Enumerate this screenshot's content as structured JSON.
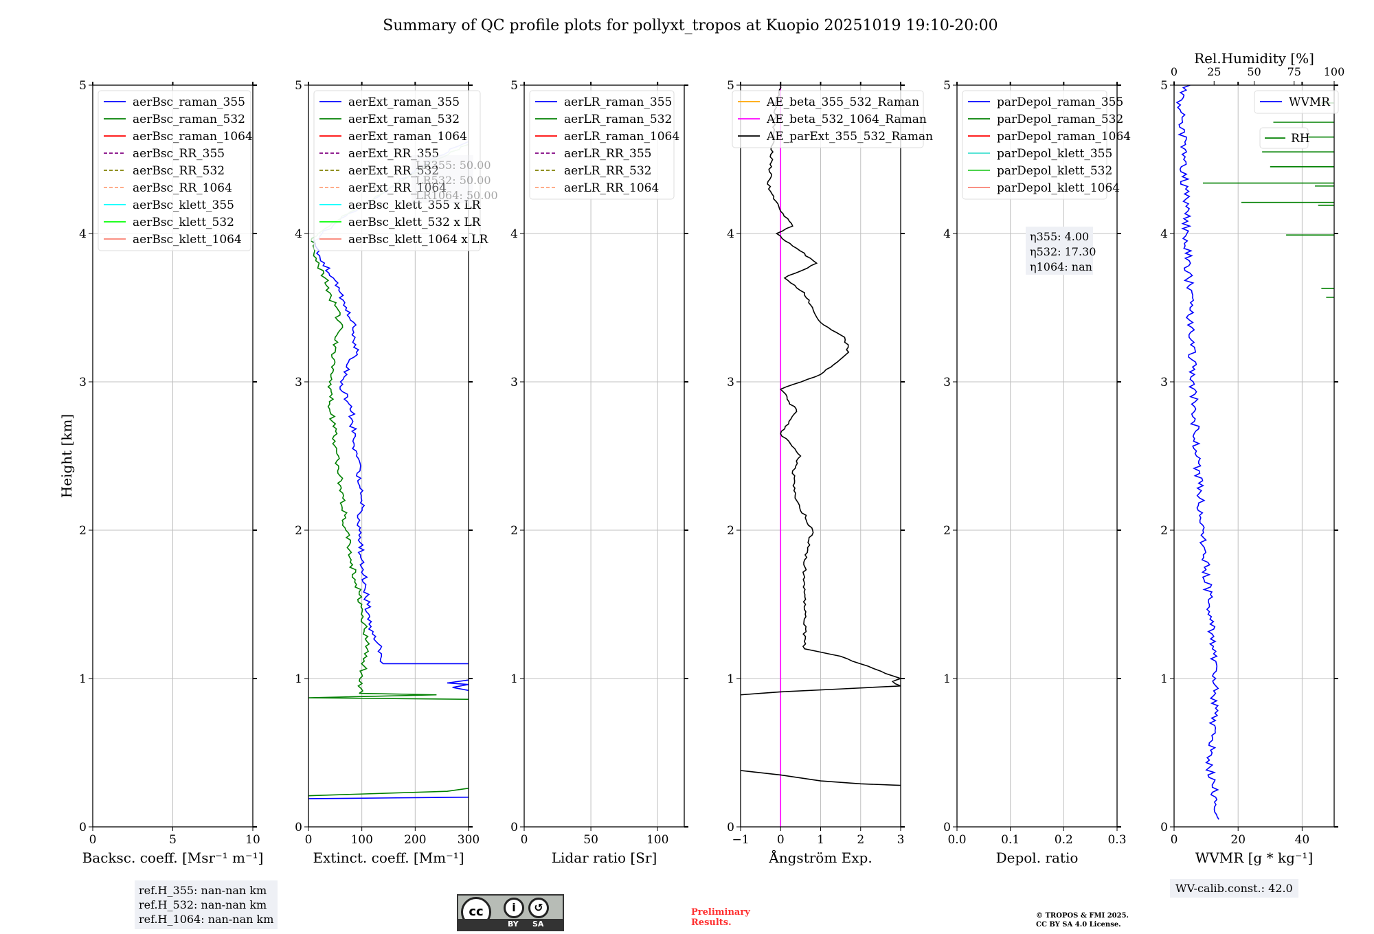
{
  "title": "Summary of QC profile plots for pollyxt_tropos at Kuopio 20251019 19:10-20:00",
  "ylabel": "Height [km]",
  "chart_data": [
    {
      "type": "line",
      "xlabel": "Backsc. coeff. [Msr⁻¹ m⁻¹]",
      "xlim": [
        0,
        10
      ],
      "xticks": [
        "0",
        "5",
        "10"
      ],
      "xtickvals": [
        0,
        5,
        10
      ],
      "ylim": [
        0,
        5
      ],
      "yticks": [
        "0",
        "1",
        "2",
        "3",
        "4",
        "5"
      ],
      "legend": [
        {
          "label": "aerBsc_raman_355",
          "color": "#0000ff",
          "dash": false
        },
        {
          "label": "aerBsc_raman_532",
          "color": "#008000",
          "dash": false
        },
        {
          "label": "aerBsc_raman_1064",
          "color": "#ff0000",
          "dash": false
        },
        {
          "label": "aerBsc_RR_355",
          "color": "#800080",
          "dash": true
        },
        {
          "label": "aerBsc_RR_532",
          "color": "#808000",
          "dash": true
        },
        {
          "label": "aerBsc_RR_1064",
          "color": "#ffa07a",
          "dash": true
        },
        {
          "label": "aerBsc_klett_355",
          "color": "#00ffff",
          "dash": false
        },
        {
          "label": "aerBsc_klett_532",
          "color": "#00ff00",
          "dash": false
        },
        {
          "label": "aerBsc_klett_1064",
          "color": "#fa8072",
          "dash": false
        }
      ],
      "series": []
    },
    {
      "type": "line",
      "xlabel": "Extinct. coeff. [Mm⁻¹]",
      "xlim": [
        0,
        300
      ],
      "xticks": [
        "0",
        "100",
        "200",
        "300"
      ],
      "xtickvals": [
        0,
        100,
        200,
        300
      ],
      "ylim": [
        0,
        5
      ],
      "yticks": [
        "0",
        "1",
        "2",
        "3",
        "4",
        "5"
      ],
      "legend": [
        {
          "label": "aerExt_raman_355",
          "color": "#0000ff",
          "dash": false
        },
        {
          "label": "aerExt_raman_532",
          "color": "#008000",
          "dash": false
        },
        {
          "label": "aerExt_raman_1064",
          "color": "#ff0000",
          "dash": false
        },
        {
          "label": "aerExt_RR_355",
          "color": "#800080",
          "dash": true
        },
        {
          "label": "aerExt_RR_532",
          "color": "#808000",
          "dash": true
        },
        {
          "label": "aerExt_RR_1064",
          "color": "#ffa07a",
          "dash": true
        },
        {
          "label": "aerBsc_klett_355 x LR",
          "color": "#00ffff",
          "dash": false
        },
        {
          "label": "aerBsc_klett_532 x LR",
          "color": "#00ff00",
          "dash": false
        },
        {
          "label": "aerBsc_klett_1064 x LR",
          "color": "#fa8072",
          "dash": false
        }
      ],
      "annotation": [
        "LR355: 50.00",
        "LR532: 50.00",
        "LR1064: 50.00"
      ],
      "series": [
        {
          "name": "aerExt_raman_355",
          "color": "#0000ff",
          "noise": 8,
          "points": [
            [
              0,
              0.19
            ],
            [
              300,
              0.2
            ]
          ]
        },
        {
          "name": "aerExt_raman_355",
          "color": "#0000ff",
          "noise": 0,
          "points": [
            [
              300,
              0.92
            ],
            [
              270,
              0.94
            ],
            [
              300,
              0.96
            ],
            [
              260,
              0.97
            ],
            [
              300,
              0.99
            ]
          ]
        },
        {
          "name": "aerExt_raman_355",
          "color": "#0000ff",
          "noise": 6,
          "points": [
            [
              300,
              1.1
            ],
            [
              140,
              1.1
            ],
            [
              135,
              1.2
            ],
            [
              120,
              1.3
            ],
            [
              110,
              1.5
            ],
            [
              100,
              1.8
            ],
            [
              95,
              2.0
            ],
            [
              100,
              2.2
            ],
            [
              90,
              2.5
            ],
            [
              80,
              2.8
            ],
            [
              60,
              3.0
            ],
            [
              90,
              3.2
            ],
            [
              85,
              3.4
            ],
            [
              60,
              3.6
            ],
            [
              30,
              3.8
            ],
            [
              10,
              3.95
            ]
          ]
        },
        {
          "name": "aerBsc_klett_355 x LR",
          "color": "#b0b8ff",
          "noise": 6,
          "points": [
            [
              10,
              3.95
            ],
            [
              60,
              4.1
            ],
            [
              150,
              4.3
            ],
            [
              230,
              4.5
            ],
            [
              300,
              4.62
            ]
          ]
        },
        {
          "name": "aerExt_raman_532",
          "color": "#008000",
          "noise": 0,
          "points": [
            [
              0,
              0.21
            ],
            [
              260,
              0.24
            ],
            [
              300,
              0.26
            ]
          ]
        },
        {
          "name": "aerExt_raman_532",
          "color": "#008000",
          "noise": 0,
          "points": [
            [
              300,
              0.86
            ],
            [
              0,
              0.87
            ],
            [
              240,
              0.89
            ],
            [
              95,
              0.9
            ]
          ]
        },
        {
          "name": "aerExt_raman_532",
          "color": "#008000",
          "noise": 6,
          "points": [
            [
              95,
              0.9
            ],
            [
              110,
              1.2
            ],
            [
              100,
              1.5
            ],
            [
              80,
              1.8
            ],
            [
              70,
              2.0
            ],
            [
              60,
              2.3
            ],
            [
              50,
              2.6
            ],
            [
              40,
              2.9
            ],
            [
              50,
              3.2
            ],
            [
              60,
              3.4
            ],
            [
              40,
              3.6
            ],
            [
              20,
              3.8
            ],
            [
              5,
              3.95
            ]
          ]
        },
        {
          "name": "aerBsc_klett_532 x LR",
          "color": "#b8e0b8",
          "noise": 6,
          "points": [
            [
              5,
              3.95
            ],
            [
              60,
              4.1
            ],
            [
              150,
              4.3
            ],
            [
              240,
              4.5
            ],
            [
              300,
              4.6
            ]
          ]
        }
      ]
    },
    {
      "type": "line",
      "xlabel": "Lidar ratio [Sr]",
      "xlim": [
        0,
        120
      ],
      "xticks": [
        "0",
        "50",
        "100"
      ],
      "xtickvals": [
        0,
        50,
        100
      ],
      "ylim": [
        0,
        5
      ],
      "yticks": [
        "0",
        "1",
        "2",
        "3",
        "4",
        "5"
      ],
      "legend": [
        {
          "label": "aerLR_raman_355",
          "color": "#0000ff",
          "dash": false
        },
        {
          "label": "aerLR_raman_532",
          "color": "#008000",
          "dash": false
        },
        {
          "label": "aerLR_raman_1064",
          "color": "#ff0000",
          "dash": false
        },
        {
          "label": "aerLR_RR_355",
          "color": "#800080",
          "dash": true
        },
        {
          "label": "aerLR_RR_532",
          "color": "#808000",
          "dash": true
        },
        {
          "label": "aerLR_RR_1064",
          "color": "#ffa07a",
          "dash": true
        }
      ],
      "series": []
    },
    {
      "type": "line",
      "xlabel": "Ångström Exp.",
      "xlim": [
        -1,
        3
      ],
      "xticks": [
        "−1",
        "0",
        "1",
        "2",
        "3"
      ],
      "xtickvals": [
        -1,
        0,
        1,
        2,
        3
      ],
      "ylim": [
        0,
        5
      ],
      "yticks": [
        "0",
        "1",
        "2",
        "3",
        "4",
        "5"
      ],
      "legend": [
        {
          "label": "AE_beta_355_532_Raman",
          "color": "#ffa500",
          "dash": false
        },
        {
          "label": "AE_beta_532_1064_Raman",
          "color": "#ff00ff",
          "dash": false
        },
        {
          "label": "AE_parExt_355_532_Raman",
          "color": "#000000",
          "dash": false
        }
      ],
      "series": [
        {
          "name": "AE_beta_532_1064_Raman",
          "color": "#ff00ff",
          "noise": 0,
          "points": [
            [
              0,
              0
            ],
            [
              0,
              5
            ]
          ]
        },
        {
          "name": "AE_parExt_355_532_Raman",
          "color": "#000000",
          "noise": 0,
          "points": [
            [
              3,
              0.28
            ],
            [
              2,
              0.29
            ],
            [
              1,
              0.31
            ],
            [
              0,
              0.35
            ],
            [
              -1,
              0.38
            ]
          ]
        },
        {
          "name": "AE_parExt_355_532_Raman",
          "color": "#000000",
          "noise": 0.04,
          "points": [
            [
              -1,
              0.89
            ],
            [
              0,
              0.91
            ],
            [
              3,
              0.95
            ],
            [
              2.8,
              0.98
            ],
            [
              3,
              1.0
            ],
            [
              2.5,
              1.05
            ],
            [
              1.5,
              1.15
            ],
            [
              0.6,
              1.2
            ],
            [
              0.6,
              1.8
            ],
            [
              0.8,
              2.0
            ],
            [
              0.4,
              2.2
            ],
            [
              0.3,
              2.4
            ],
            [
              0.5,
              2.5
            ],
            [
              0,
              2.65
            ],
            [
              0.4,
              2.8
            ],
            [
              0,
              2.95
            ],
            [
              1,
              3.05
            ],
            [
              1.7,
              3.2
            ],
            [
              1.6,
              3.3
            ],
            [
              1,
              3.4
            ],
            [
              0.6,
              3.6
            ],
            [
              0.1,
              3.7
            ],
            [
              0.9,
              3.8
            ],
            [
              0.4,
              3.9
            ],
            [
              -0.1,
              4.0
            ],
            [
              0.3,
              4.05
            ],
            [
              0,
              4.15
            ],
            [
              -0.3,
              4.3
            ],
            [
              -0.2,
              4.6
            ],
            [
              -0.1,
              4.9
            ],
            [
              0,
              5
            ]
          ]
        }
      ]
    },
    {
      "type": "line",
      "xlabel": "Depol. ratio",
      "xlim": [
        0,
        0.3
      ],
      "xticks": [
        "0.0",
        "0.1",
        "0.2",
        "0.3"
      ],
      "xtickvals": [
        0,
        0.1,
        0.2,
        0.3
      ],
      "ylim": [
        0,
        5
      ],
      "yticks": [
        "0",
        "1",
        "2",
        "3",
        "4",
        "5"
      ],
      "legend": [
        {
          "label": "parDepol_raman_355",
          "color": "#0000ff",
          "dash": false
        },
        {
          "label": "parDepol_raman_532",
          "color": "#008000",
          "dash": false
        },
        {
          "label": "parDepol_raman_1064",
          "color": "#ff0000",
          "dash": false
        },
        {
          "label": "parDepol_klett_355",
          "color": "#40e0d0",
          "dash": false
        },
        {
          "label": "parDepol_klett_532",
          "color": "#32cd32",
          "dash": false
        },
        {
          "label": "parDepol_klett_1064",
          "color": "#fa8072",
          "dash": false
        }
      ],
      "annotation": [
        "η355: 4.00",
        "η532: 17.30",
        "η1064: nan"
      ],
      "series": []
    },
    {
      "type": "line",
      "xlabel": "WVMR [g * kg⁻¹]",
      "xlim": [
        0,
        50
      ],
      "xticks": [
        "0",
        "20",
        "40"
      ],
      "xtickvals": [
        0,
        20,
        40
      ],
      "ylim": [
        0,
        5
      ],
      "yticks": [
        "0",
        "1",
        "2",
        "3",
        "4",
        "5"
      ],
      "top_xlabel": "Rel.Humidity [%]",
      "top_xlim": [
        0,
        100
      ],
      "top_xticks": [
        "0",
        "25",
        "50",
        "75",
        "100"
      ],
      "legend": [
        {
          "label": "WVMR",
          "color": "#0000ff",
          "dash": false
        }
      ],
      "legend2": [
        {
          "label": "RH",
          "color": "#008000",
          "dash": false
        }
      ],
      "annotation": [
        "WV-calib.const.: 42.0"
      ],
      "series": [
        {
          "name": "WVMR",
          "color": "#0000ff",
          "noise": 1.3,
          "points": [
            [
              14,
              0.05
            ],
            [
              13,
              0.2
            ],
            [
              11,
              0.4
            ],
            [
              12,
              0.6
            ],
            [
              13,
              1
            ],
            [
              11,
              1.5
            ],
            [
              9,
              2
            ],
            [
              7,
              2.5
            ],
            [
              6,
              3
            ],
            [
              5,
              3.5
            ],
            [
              4,
              4
            ],
            [
              3,
              4.5
            ],
            [
              2,
              4.95
            ],
            [
              5,
              5
            ]
          ]
        }
      ],
      "rh_spikes": [
        [
          100,
          2.72
        ],
        [
          95,
          3.57
        ],
        [
          92,
          3.63
        ],
        [
          70,
          3.99
        ],
        [
          42,
          4.21
        ],
        [
          90,
          4.19
        ],
        [
          18,
          4.34
        ],
        [
          88,
          4.32
        ],
        [
          60,
          4.45
        ],
        [
          55,
          4.55
        ],
        [
          65,
          4.65
        ],
        [
          62,
          4.75
        ],
        [
          92,
          4.88
        ]
      ]
    }
  ],
  "footer": {
    "refH": [
      "ref.H_355: nan-nan km",
      "ref.H_532: nan-nan km",
      "ref.H_1064: nan-nan km"
    ],
    "preliminary": [
      "Preliminary",
      "Results."
    ],
    "copyright": [
      "© TROPOS & FMI 2025.",
      "CC BY SA 4.0 License."
    ],
    "cc_by": "BY",
    "cc_sa": "SA",
    "cc": "cc"
  }
}
